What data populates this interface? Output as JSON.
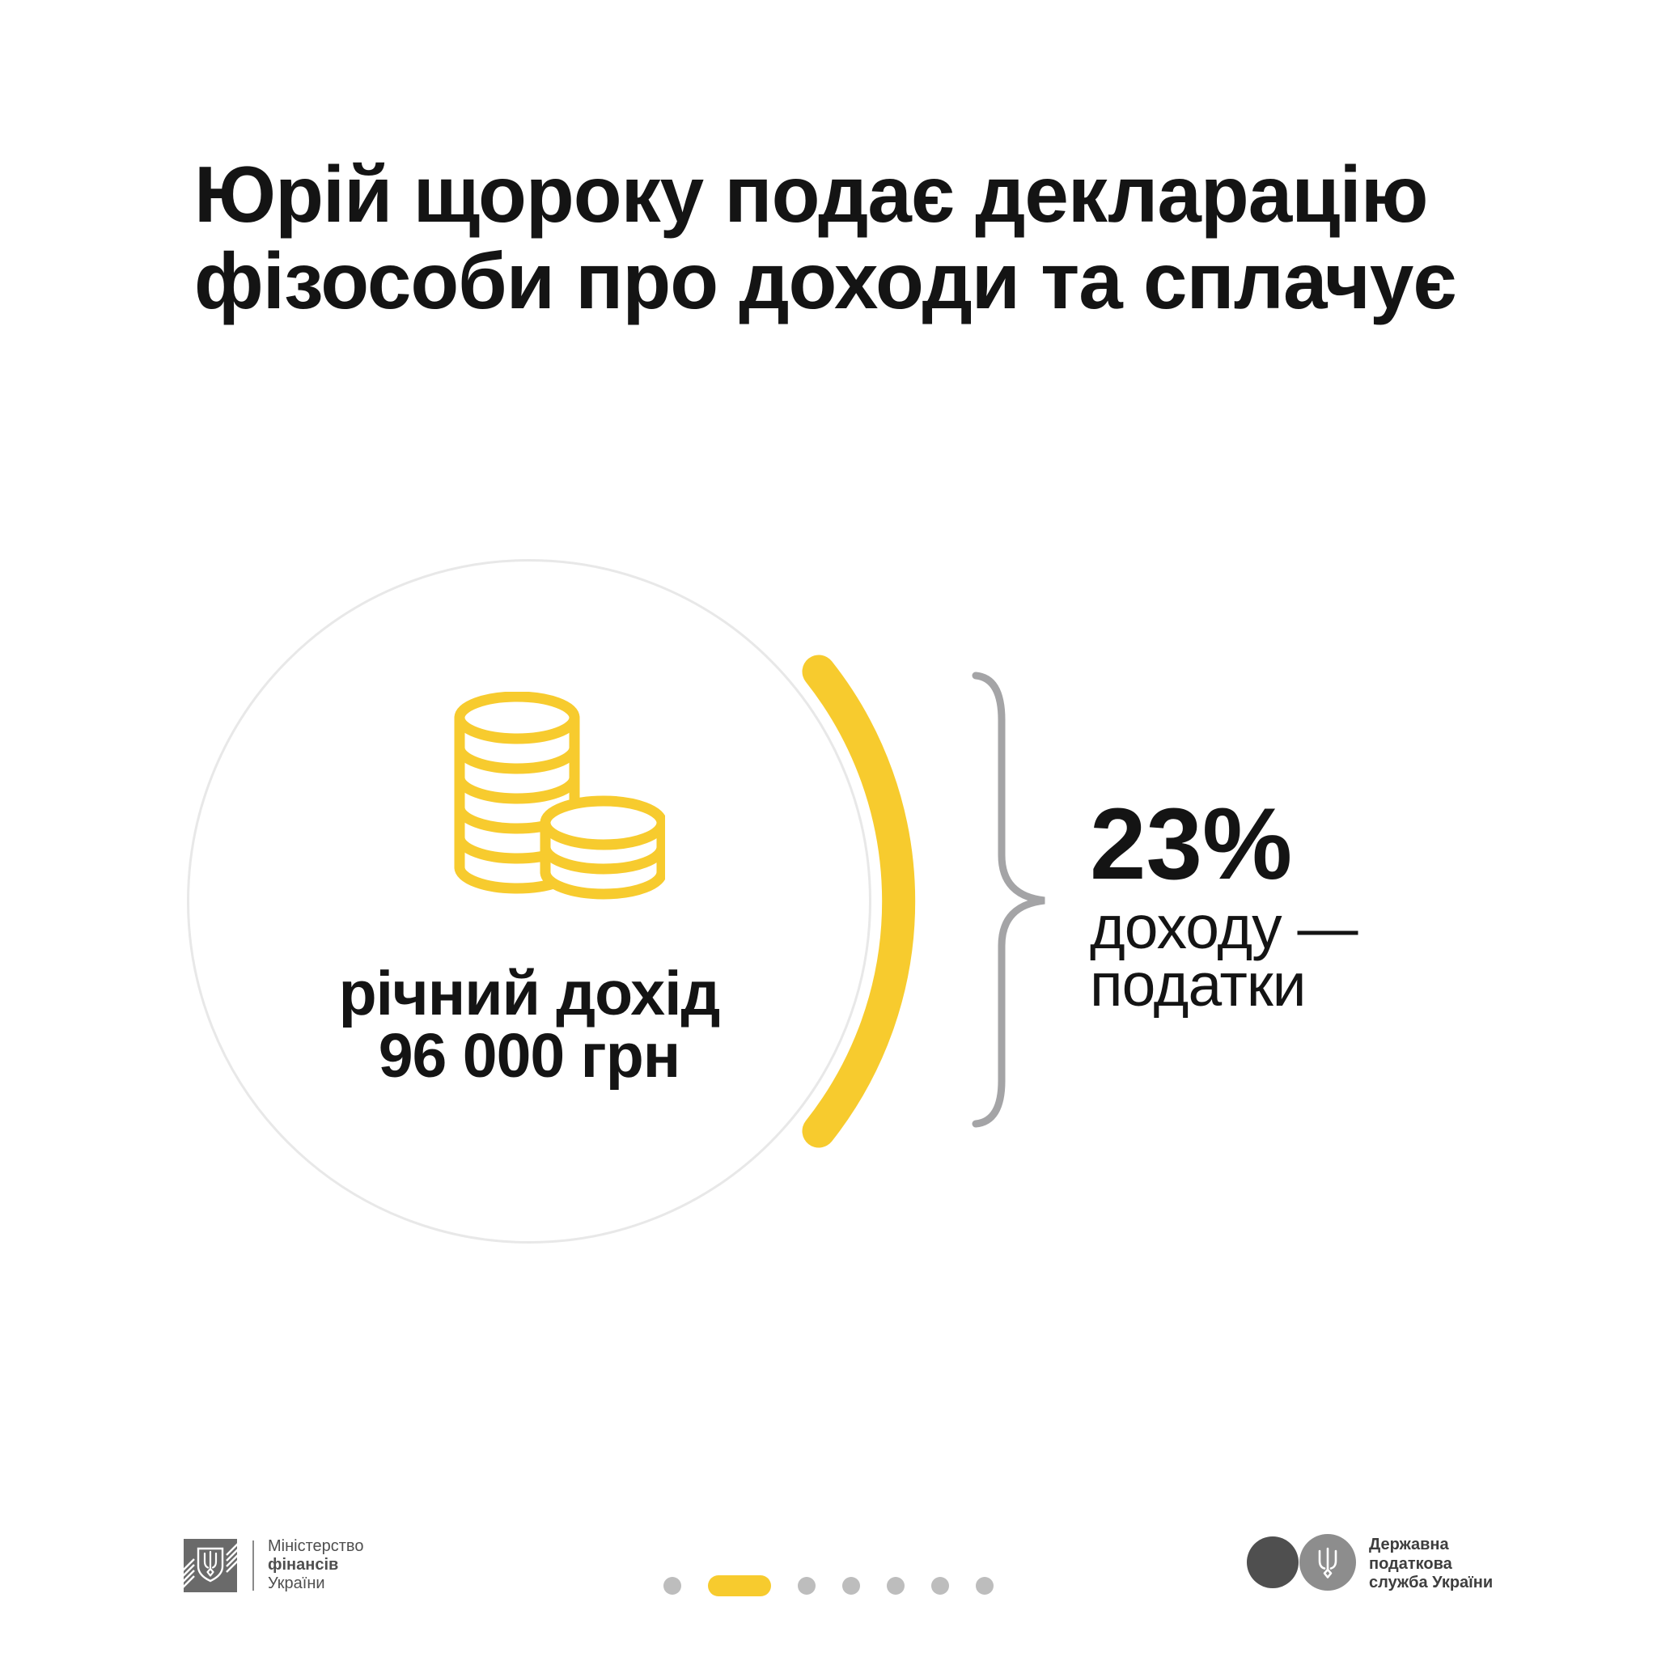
{
  "title": {
    "line1": "Юрій щороку подає декларацію",
    "line2": "фізособи про доходи та сплачує"
  },
  "income_circle": {
    "icon": "coins-icon",
    "label_line1": "річний дохід",
    "label_line2": "96 000 грн"
  },
  "tax_callout": {
    "percent": "23%",
    "line1": "доходу —",
    "line2": "податки"
  },
  "pagination": {
    "total": 7,
    "active_index": 1
  },
  "footer_left": {
    "icon": "minfin-emblem",
    "line1": "Міністерство",
    "line2": "фінансів",
    "line3": "України"
  },
  "footer_right": {
    "icon": "tax-service-emblem",
    "line1": "Державна",
    "line2": "податкова",
    "line3": "служба України"
  },
  "colors": {
    "accent_yellow": "#F7CB2E",
    "circle_border": "#E8E8E8",
    "brace_gray": "#A4A4A6",
    "ink": "#141414",
    "dot_gray": "#BDBDBD",
    "footer_gray": "#4F4F4F",
    "footer_dark": "#3E3E3E",
    "logo_dark": "#4F4F4F",
    "logo_light": "#8D8D8D",
    "minfin_square": "#6A6A6A"
  }
}
